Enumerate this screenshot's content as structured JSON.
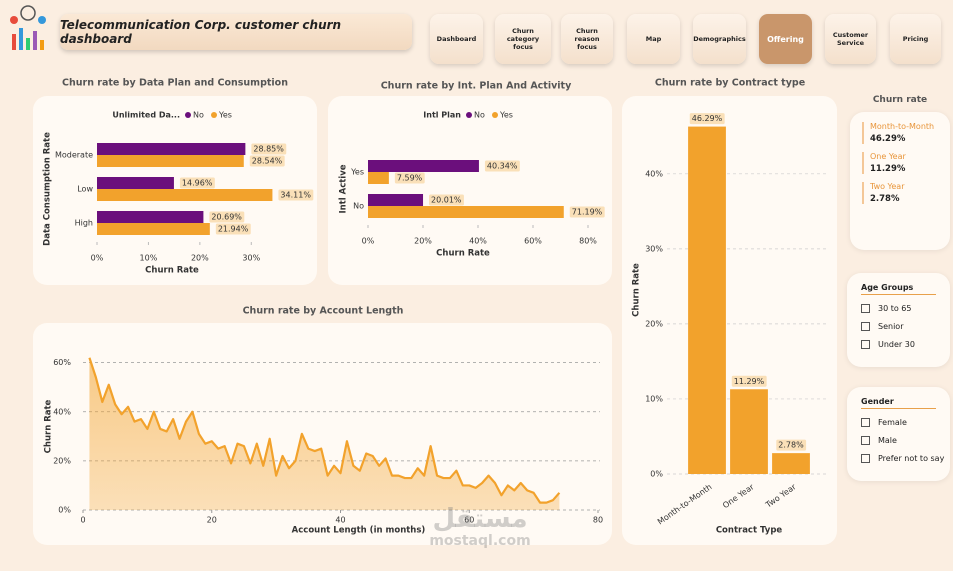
{
  "header": {
    "title": "Telecommunication Corp. customer churn dashboard"
  },
  "nav": {
    "items": [
      "Dashboard",
      "Churn category focus",
      "Churn reason focus",
      "Map",
      "Demographics",
      "Offering",
      "Customer Service",
      "Pricing"
    ],
    "active_index": 5
  },
  "chart_data": [
    {
      "type": "hbar",
      "title": "Churn rate by Data Plan and Consumption",
      "legend_title": "Unlimited Da...",
      "categories": [
        "Moderate",
        "Low",
        "High"
      ],
      "series": [
        {
          "name": "No",
          "color": "#6b0f7c",
          "values": [
            28.85,
            14.96,
            20.69
          ],
          "value_labels": [
            "28.85%",
            "14.96%",
            "20.69%"
          ]
        },
        {
          "name": "Yes",
          "color": "#f2a22c",
          "values": [
            28.54,
            34.11,
            21.94
          ],
          "value_labels": [
            "28.54%",
            "34.11%",
            "21.94%"
          ]
        }
      ],
      "xlim": [
        0,
        35
      ],
      "xticks": [
        {
          "value": 0,
          "label": "0%"
        },
        {
          "value": 10,
          "label": "10%"
        },
        {
          "value": 20,
          "label": "20%"
        },
        {
          "value": 30,
          "label": "30%"
        }
      ],
      "x_label": "Churn Rate",
      "y_label": "Data Consumption Rate"
    },
    {
      "type": "hbar",
      "title": "Churn rate by Int. Plan And Activity",
      "legend_title": "Intl Plan",
      "categories": [
        "Yes",
        "No"
      ],
      "series": [
        {
          "name": "No",
          "color": "#6b0f7c",
          "values": [
            40.34,
            20.01
          ],
          "value_labels": [
            "40.34%",
            "20.01%"
          ]
        },
        {
          "name": "Yes",
          "color": "#f2a22c",
          "values": [
            7.59,
            71.19
          ],
          "value_labels": [
            "7.59%",
            "71.19%"
          ]
        }
      ],
      "xlim": [
        0,
        80
      ],
      "xticks": [
        {
          "value": 0,
          "label": "0%"
        },
        {
          "value": 20,
          "label": "20%"
        },
        {
          "value": 40,
          "label": "40%"
        },
        {
          "value": 60,
          "label": "60%"
        },
        {
          "value": 80,
          "label": "80%"
        }
      ],
      "x_label": "Churn Rate",
      "y_label": "Intl Active"
    },
    {
      "type": "vbar",
      "title": "Churn rate by Contract type",
      "categories": [
        "Month-to-Month",
        "One Year",
        "Two Year"
      ],
      "color": "#f2a22c",
      "values": [
        46.29,
        11.29,
        2.78
      ],
      "value_labels": [
        "46.29%",
        "11.29%",
        "2.78%"
      ],
      "ylim": [
        0,
        48.5
      ],
      "yticks": [
        {
          "value": 0,
          "label": "0%"
        },
        {
          "value": 10,
          "label": "10%"
        },
        {
          "value": 20,
          "label": "20%"
        },
        {
          "value": 30,
          "label": "30%"
        },
        {
          "value": 40,
          "label": "40%"
        }
      ],
      "x_label": "Contract Type",
      "y_label": "Churn Rate",
      "grid": true
    },
    {
      "type": "area",
      "title": "Churn rate by Account Length",
      "color": "#f2a22c",
      "x": [
        1,
        2,
        3,
        4,
        5,
        6,
        7,
        8,
        9,
        10,
        11,
        12,
        13,
        14,
        15,
        16,
        17,
        18,
        19,
        20,
        21,
        22,
        23,
        24,
        25,
        26,
        27,
        28,
        29,
        30,
        31,
        32,
        33,
        34,
        35,
        36,
        37,
        38,
        39,
        40,
        41,
        42,
        43,
        44,
        45,
        46,
        47,
        48,
        49,
        50,
        51,
        52,
        53,
        54,
        55,
        56,
        57,
        58,
        59,
        60,
        61,
        62,
        63,
        64,
        65,
        66,
        67,
        68,
        69,
        70,
        71,
        72,
        73,
        74
      ],
      "values": [
        62,
        54,
        44,
        51,
        43,
        39,
        42,
        36,
        37,
        33,
        40,
        33,
        32,
        37,
        29,
        36,
        40,
        31,
        27,
        28,
        25,
        26,
        19,
        27,
        26,
        19,
        27,
        18,
        29,
        14,
        22,
        17,
        20,
        31,
        25,
        24,
        25,
        14,
        18,
        15,
        28,
        18,
        16,
        23,
        22,
        18,
        21,
        14,
        14,
        13,
        13,
        17,
        14,
        26,
        14,
        13,
        13,
        16,
        10,
        10,
        9,
        11,
        14,
        11,
        6,
        10,
        8,
        11,
        8,
        7,
        3,
        3,
        4,
        7
      ],
      "xlim": [
        0,
        80
      ],
      "xticks": [
        0,
        20,
        40,
        60,
        80
      ],
      "ylim": [
        0,
        68
      ],
      "yticks": [
        {
          "value": 0,
          "label": "0%"
        },
        {
          "value": 20,
          "label": "20%"
        },
        {
          "value": 40,
          "label": "40%"
        },
        {
          "value": 60,
          "label": "60%"
        }
      ],
      "x_label": "Account Length (in months)",
      "y_label": "Churn Rate",
      "grid": true
    }
  ],
  "churn_card": {
    "title": "Churn rate",
    "items": [
      {
        "label": "Month-to-Month",
        "value": "46.29%"
      },
      {
        "label": "One Year",
        "value": "11.29%"
      },
      {
        "label": "Two Year",
        "value": "2.78%"
      }
    ]
  },
  "slicers": [
    {
      "title": "Age Groups",
      "options": [
        "30 to 65",
        "Senior",
        "Under 30"
      ]
    },
    {
      "title": "Gender",
      "options": [
        "Female",
        "Male",
        "Prefer not to say"
      ]
    }
  ],
  "watermark": {
    "arabic": "مستقل",
    "latin": "mostaql.com"
  }
}
